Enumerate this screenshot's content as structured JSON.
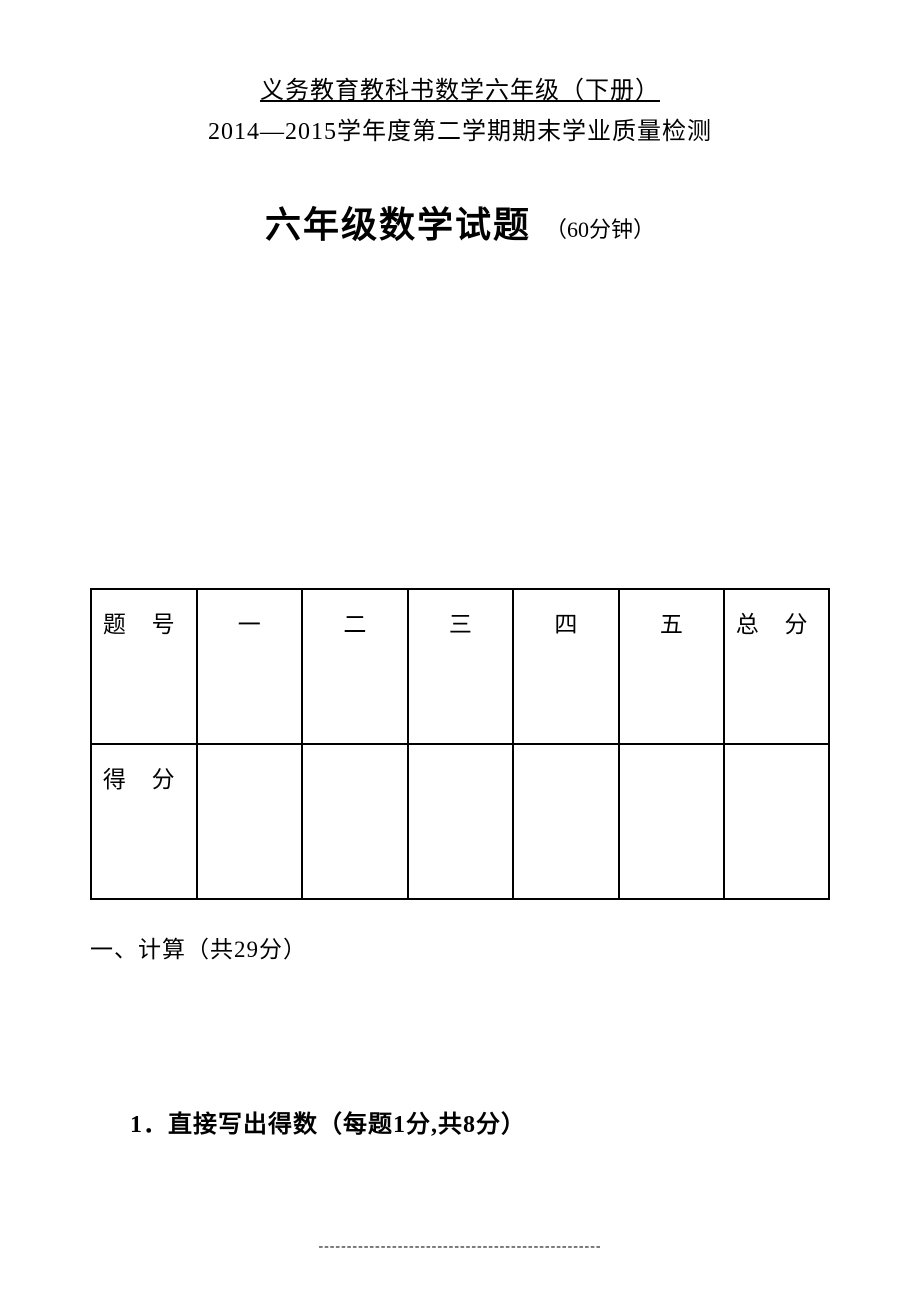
{
  "header": {
    "title": "义务教育教科书数学六年级（下册）",
    "subtitle": "2014—2015学年度第二学期期末学业质量检测"
  },
  "mainTitle": {
    "main": "六年级数学试题",
    "duration": "（60分钟）"
  },
  "scoreTable": {
    "columns": [
      "题 号",
      "一",
      "二",
      "三",
      "四",
      "五",
      "总 分"
    ],
    "row2Label": "得 分",
    "borderColor": "#000000",
    "fontSize": 23
  },
  "section1": {
    "title": "一、计算（共29分）"
  },
  "question1": {
    "title": "1．直接写出得数（每题1分,共8分）"
  },
  "footer": {
    "line": "--------------------------------------------------"
  },
  "colors": {
    "background": "#ffffff",
    "text": "#000000"
  }
}
